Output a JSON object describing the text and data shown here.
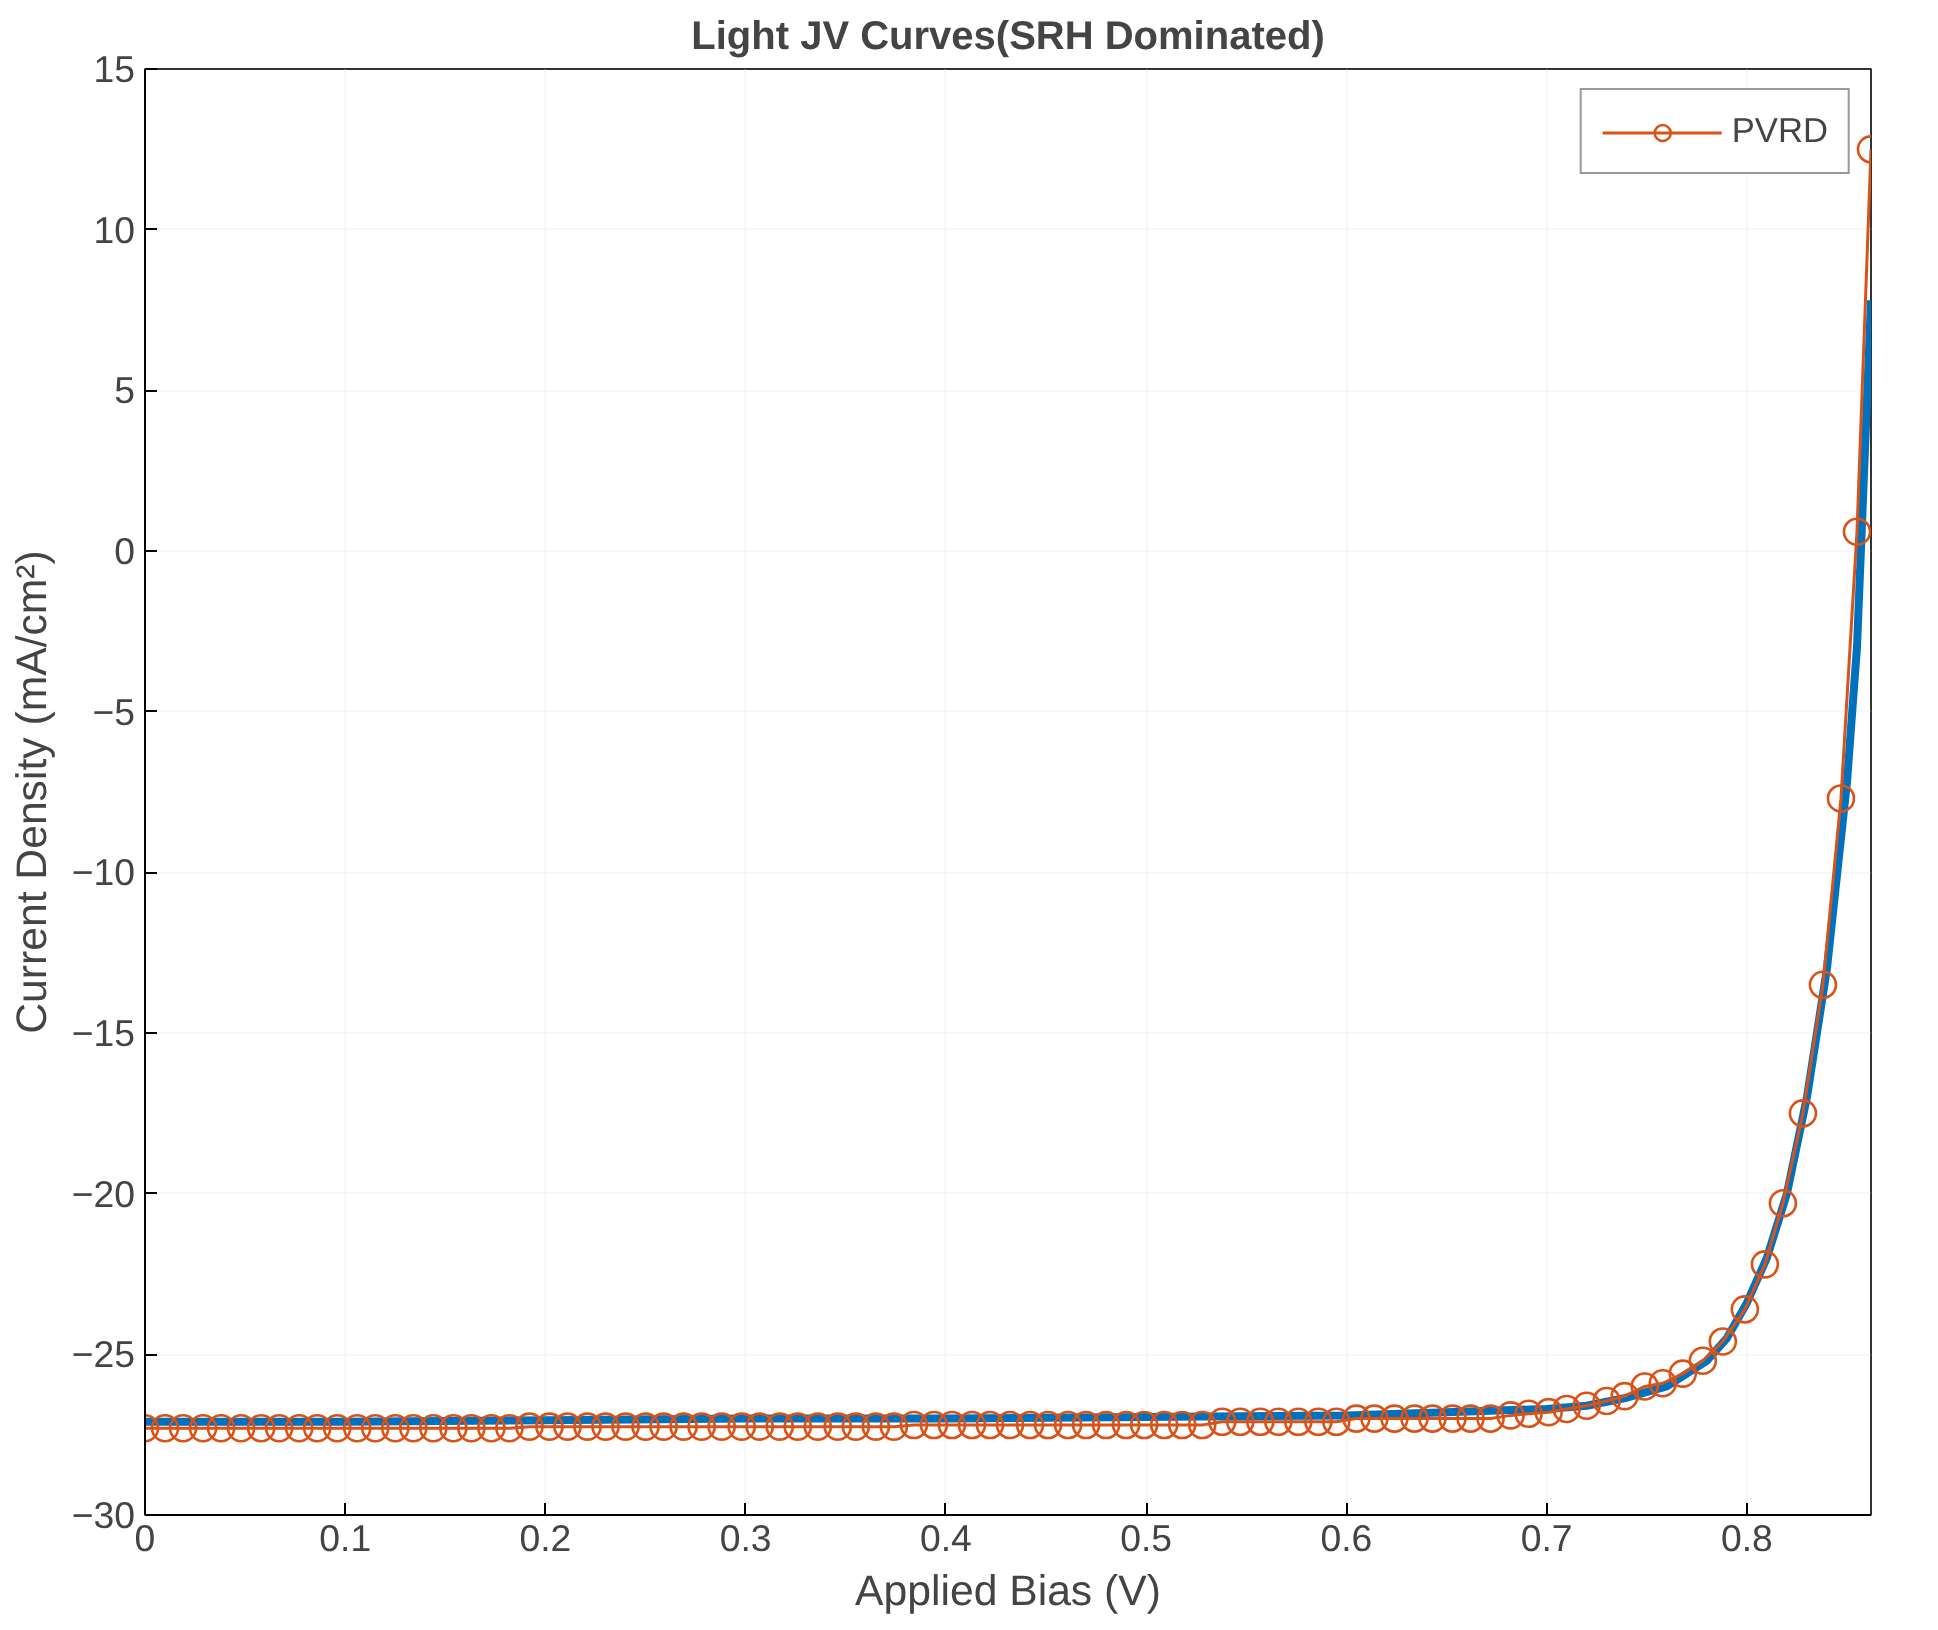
{
  "chart_data": {
    "type": "line",
    "title": "Light JV Curves(SRH Dominated)",
    "xlabel": "Applied Bias (V)",
    "ylabel": "Current Density (mA/cm²)",
    "xlim": [
      0,
      0.862
    ],
    "ylim": [
      -30,
      15
    ],
    "xticks": [
      0,
      0.1,
      0.2,
      0.3,
      0.4,
      0.5,
      0.6,
      0.7,
      0.8
    ],
    "yticks": [
      -30,
      -25,
      -20,
      -15,
      -10,
      -5,
      0,
      5,
      10,
      15
    ],
    "grid": true,
    "legend": "top right",
    "series": [
      {
        "color": "#0072bd",
        "marker": "none",
        "x": [
          0,
          0.1,
          0.2,
          0.3,
          0.4,
          0.5,
          0.6,
          0.65,
          0.7,
          0.72,
          0.74,
          0.76,
          0.78,
          0.79,
          0.8,
          0.81,
          0.82,
          0.83,
          0.84,
          0.85,
          0.855,
          0.862
        ],
        "values": [
          -27.1,
          -27.1,
          -27.05,
          -27.0,
          -27.0,
          -26.95,
          -26.9,
          -26.8,
          -26.7,
          -26.6,
          -26.35,
          -26.0,
          -25.2,
          -24.5,
          -23.4,
          -22.0,
          -20.0,
          -17.0,
          -13.0,
          -7.2,
          -3.0,
          7.8
        ]
      },
      {
        "name": "PVRD",
        "color": "#d95319",
        "marker": "circle",
        "x": [
          0,
          0.01,
          0.019,
          0.029,
          0.038,
          0.048,
          0.058,
          0.067,
          0.077,
          0.086,
          0.096,
          0.106,
          0.115,
          0.125,
          0.134,
          0.144,
          0.154,
          0.163,
          0.173,
          0.182,
          0.192,
          0.202,
          0.211,
          0.221,
          0.23,
          0.24,
          0.25,
          0.259,
          0.269,
          0.278,
          0.288,
          0.298,
          0.307,
          0.317,
          0.326,
          0.336,
          0.346,
          0.355,
          0.365,
          0.374,
          0.384,
          0.394,
          0.403,
          0.413,
          0.422,
          0.432,
          0.442,
          0.451,
          0.461,
          0.47,
          0.48,
          0.49,
          0.499,
          0.509,
          0.518,
          0.528,
          0.538,
          0.547,
          0.557,
          0.566,
          0.576,
          0.586,
          0.595,
          0.605,
          0.614,
          0.624,
          0.634,
          0.643,
          0.653,
          0.662,
          0.672,
          0.682,
          0.691,
          0.701,
          0.71,
          0.72,
          0.73,
          0.739,
          0.749,
          0.758,
          0.768,
          0.778,
          0.788,
          0.799,
          0.809,
          0.818,
          0.828,
          0.838,
          0.847,
          0.855,
          0.862
        ],
        "values": [
          -27.3,
          -27.3,
          -27.3,
          -27.3,
          -27.3,
          -27.3,
          -27.3,
          -27.3,
          -27.3,
          -27.3,
          -27.3,
          -27.3,
          -27.3,
          -27.3,
          -27.3,
          -27.3,
          -27.3,
          -27.3,
          -27.3,
          -27.3,
          -27.25,
          -27.25,
          -27.25,
          -27.25,
          -27.25,
          -27.25,
          -27.25,
          -27.25,
          -27.25,
          -27.25,
          -27.25,
          -27.25,
          -27.25,
          -27.25,
          -27.25,
          -27.25,
          -27.25,
          -27.25,
          -27.25,
          -27.25,
          -27.2,
          -27.2,
          -27.2,
          -27.2,
          -27.2,
          -27.2,
          -27.2,
          -27.2,
          -27.2,
          -27.2,
          -27.2,
          -27.2,
          -27.2,
          -27.2,
          -27.2,
          -27.2,
          -27.1,
          -27.1,
          -27.1,
          -27.1,
          -27.1,
          -27.1,
          -27.1,
          -27.0,
          -27.0,
          -27.0,
          -27.0,
          -27.0,
          -27.0,
          -27.0,
          -27.0,
          -26.9,
          -26.85,
          -26.8,
          -26.7,
          -26.6,
          -26.45,
          -26.3,
          -26.0,
          -25.9,
          -25.6,
          -25.2,
          -24.6,
          -23.6,
          -22.2,
          -20.3,
          -17.5,
          -13.5,
          -7.7,
          0.6,
          12.5
        ]
      }
    ]
  }
}
